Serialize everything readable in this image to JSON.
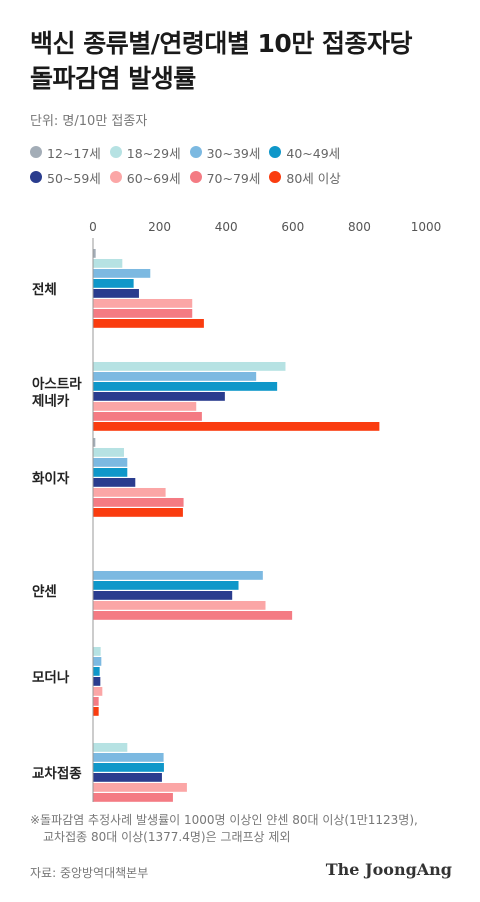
{
  "title_line1": "백신 종류별/연령대별 10만 접종자당",
  "title_line2": "돌파감염 발생률",
  "unit": "단위: 명/10만 접종자",
  "note_line1": "※돌파감염 추정사례 발생률이 1000명 이상인 얀센 80대 이상(1만1123명),",
  "note_line2": "교차접종 80대 이상(1377.4명)은 그래프상 제외",
  "source": "자료: 중앙방역대책본부",
  "brand": "The JoongAng",
  "chart_data": {
    "type": "bar",
    "orientation": "horizontal",
    "categories": [
      [
        "전체"
      ],
      [
        "아스트라",
        "제네카"
      ],
      [
        "화이자"
      ],
      [
        "얀센"
      ],
      [
        "모더나"
      ],
      [
        "교차접종"
      ]
    ],
    "xlim": [
      0,
      1000
    ],
    "xticks": [
      "0",
      "200",
      "400",
      "600",
      "800",
      "1000"
    ],
    "series": [
      {
        "name": "12~17세",
        "color": "#a3adb7",
        "values": [
          8,
          0,
          7,
          0,
          0,
          0
        ]
      },
      {
        "name": "18~29세",
        "color": "#b6e2e3",
        "values": [
          88,
          578,
          93,
          0,
          23,
          103
        ]
      },
      {
        "name": "30~39세",
        "color": "#7cb9e1",
        "values": [
          172,
          490,
          103,
          510,
          25,
          212
        ]
      },
      {
        "name": "40~49세",
        "color": "#0f97c9",
        "values": [
          122,
          553,
          103,
          437,
          20,
          213
        ]
      },
      {
        "name": "50~59세",
        "color": "#2a3c8e",
        "values": [
          138,
          396,
          127,
          418,
          22,
          207
        ]
      },
      {
        "name": "60~69세",
        "color": "#fba6a6",
        "values": [
          298,
          310,
          218,
          518,
          28,
          282
        ]
      },
      {
        "name": "70~79세",
        "color": "#f47b83",
        "values": [
          298,
          327,
          272,
          598,
          17,
          240
        ]
      },
      {
        "name": "80세 이상",
        "color": "#fa3c0f",
        "values": [
          333,
          860,
          270,
          0,
          17,
          0
        ]
      }
    ],
    "legend_rows": [
      [
        0,
        1,
        2,
        3
      ],
      [
        4,
        5,
        6,
        7
      ]
    ]
  }
}
